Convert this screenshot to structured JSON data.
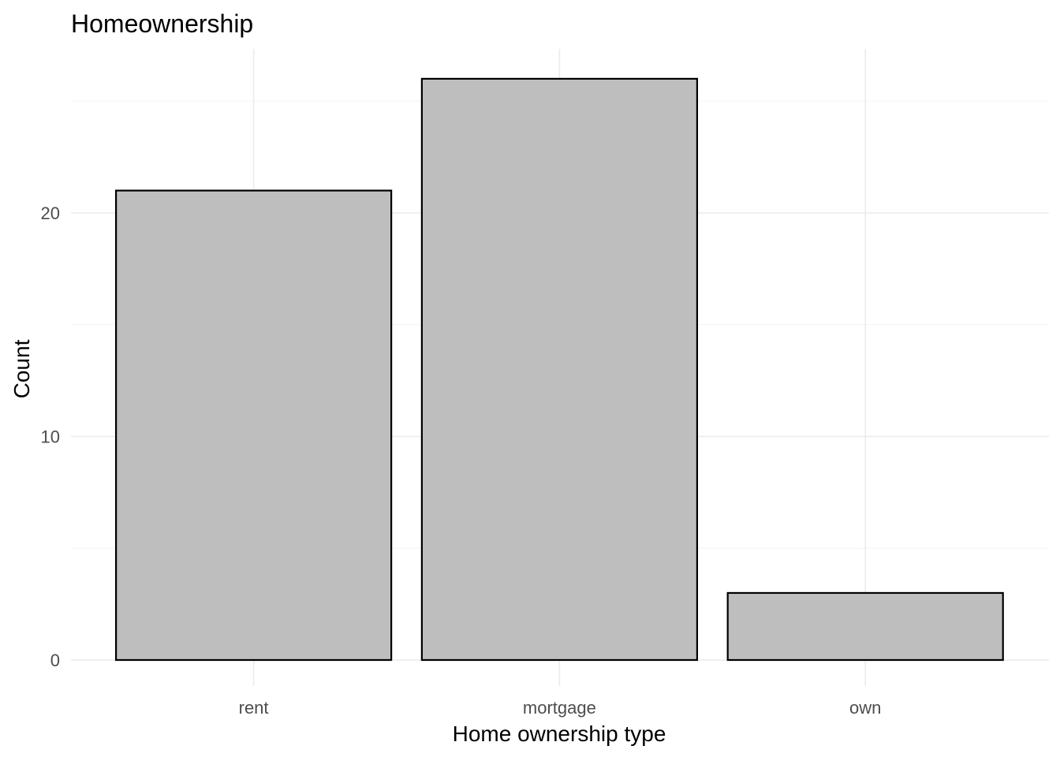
{
  "chart_data": {
    "type": "bar",
    "title": "Homeownership",
    "xlabel": "Home ownership type",
    "ylabel": "Count",
    "categories": [
      "rent",
      "mortgage",
      "own"
    ],
    "values": [
      21,
      26,
      3
    ],
    "ylim": [
      0,
      27.3
    ],
    "y_ticks": [
      0,
      10,
      20
    ],
    "y_tick_labels": [
      "0",
      "10",
      "20"
    ],
    "grid": true,
    "bar_fill": "#bebebe",
    "bar_outline": "#000000",
    "background": "#ffffff"
  }
}
